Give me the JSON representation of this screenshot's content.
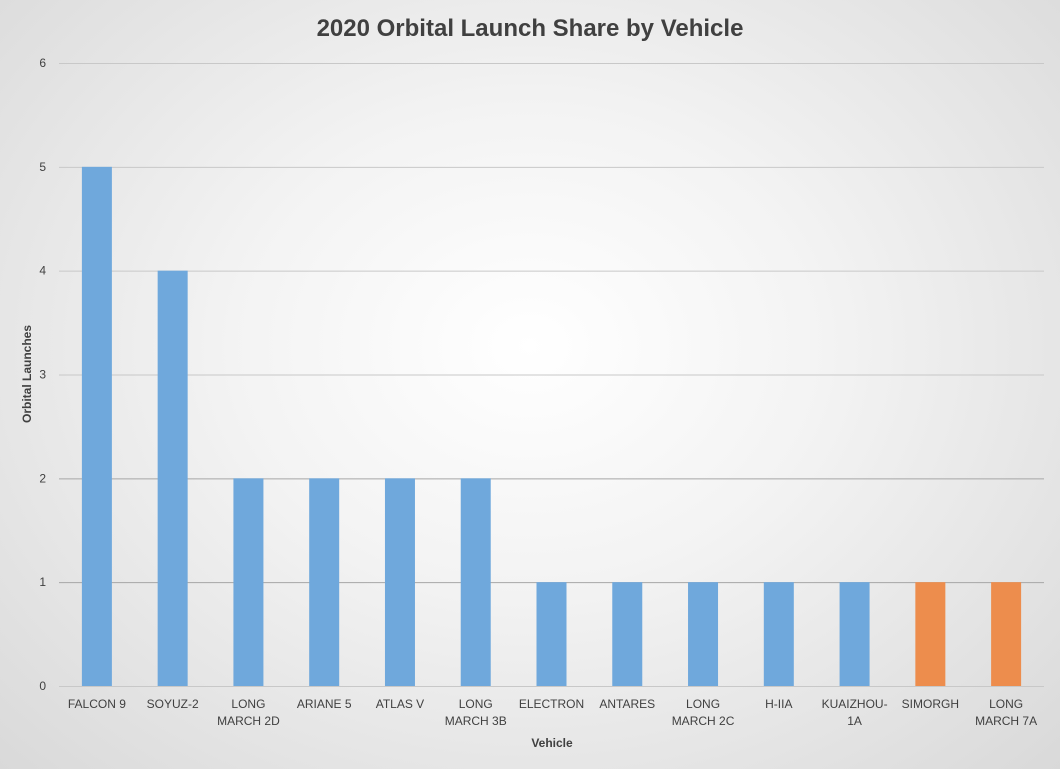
{
  "chart_data": {
    "type": "bar",
    "title": "2020 Orbital Launch Share by Vehicle",
    "xlabel": "Vehicle",
    "ylabel": "Orbital Launches",
    "ylim": [
      0,
      6
    ],
    "yticks": [
      "0",
      "1",
      "2",
      "3",
      "4",
      "5",
      "6"
    ],
    "grid": true,
    "legend": "none",
    "categories": [
      "FALCON 9",
      "SOYUZ-2",
      "LONG MARCH 2D",
      "ARIANE 5",
      "ATLAS V",
      "LONG MARCH 3B",
      "ELECTRON",
      "ANTARES",
      "LONG MARCH 2C",
      "H-IIA",
      "KUAIZHOU-1A",
      "SIMORGH",
      "LONG MARCH 7A"
    ],
    "category_label_lines": [
      [
        "FALCON 9"
      ],
      [
        "SOYUZ-2"
      ],
      [
        "LONG",
        "MARCH 2D"
      ],
      [
        "ARIANE 5"
      ],
      [
        "ATLAS V"
      ],
      [
        "LONG",
        "MARCH 3B"
      ],
      [
        "ELECTRON"
      ],
      [
        "ANTARES"
      ],
      [
        "LONG",
        "MARCH 2C"
      ],
      [
        "H-IIA"
      ],
      [
        "KUAIZHOU-",
        "1A"
      ],
      [
        "SIMORGH"
      ],
      [
        "LONG",
        "MARCH 7A"
      ]
    ],
    "values": [
      5,
      4,
      2,
      2,
      2,
      2,
      1,
      1,
      1,
      1,
      1,
      1,
      1
    ],
    "bar_colors": [
      "#6fa8dc",
      "#6fa8dc",
      "#6fa8dc",
      "#6fa8dc",
      "#6fa8dc",
      "#6fa8dc",
      "#6fa8dc",
      "#6fa8dc",
      "#6fa8dc",
      "#6fa8dc",
      "#6fa8dc",
      "#ed8d4d",
      "#ed8d4d"
    ]
  }
}
